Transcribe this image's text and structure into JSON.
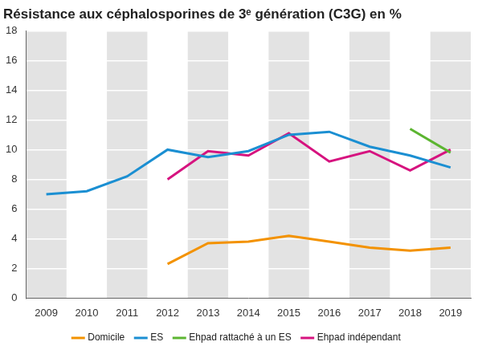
{
  "chart_data": {
    "type": "line",
    "title": "Résistance aux céphalosporines de 3ᵉ génération (C3G) en %",
    "categories": [
      "2009",
      "2010",
      "2011",
      "2012",
      "2013",
      "2014",
      "2015",
      "2016",
      "2017",
      "2018",
      "2019"
    ],
    "series": [
      {
        "name": "Domicile",
        "color": "#f39200",
        "values": [
          null,
          null,
          null,
          2.3,
          3.7,
          3.8,
          4.2,
          3.8,
          3.4,
          3.2,
          3.4
        ]
      },
      {
        "name": "ES",
        "color": "#1b8fd2",
        "values": [
          7.0,
          7.2,
          8.2,
          10.0,
          9.5,
          9.9,
          11.0,
          11.2,
          10.2,
          9.6,
          8.8
        ]
      },
      {
        "name": "Ehpad rattaché à un ES",
        "color": "#5cb531",
        "values": [
          null,
          null,
          null,
          null,
          null,
          null,
          null,
          null,
          null,
          11.4,
          9.8
        ]
      },
      {
        "name": "Ehpad indépendant",
        "color": "#d6137f",
        "values": [
          null,
          null,
          null,
          8.0,
          9.9,
          9.6,
          11.1,
          9.2,
          9.9,
          8.6,
          10.0
        ]
      }
    ],
    "ylim": [
      0,
      18
    ],
    "yticks": [
      0,
      2,
      4,
      6,
      8,
      10,
      12,
      14,
      16,
      18
    ],
    "grid": true,
    "legend": "bottom"
  }
}
